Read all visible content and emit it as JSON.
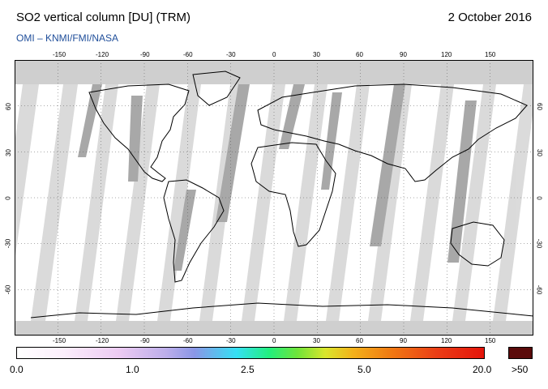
{
  "header": {
    "title": "SO2 vertical column [DU] (TRM)",
    "date": "2 October 2016",
    "credit": "OMI  –  KNMI/FMI/NASA"
  },
  "map": {
    "projection": "equirectangular",
    "lon_range": [
      -180,
      180
    ],
    "lat_range": [
      -90,
      90
    ],
    "lon_ticks_top": [
      "-150",
      "-120",
      "-90",
      "-60",
      "-30",
      "0",
      "30",
      "60",
      "90",
      "120",
      "150"
    ],
    "lon_ticks_bottom": [
      "-150",
      "-120",
      "-90",
      "-60",
      "-30",
      "0",
      "30",
      "60",
      "90",
      "120",
      "150"
    ],
    "lat_ticks": [
      "60",
      "30",
      "0",
      "-30",
      "-60"
    ],
    "gridlines": true,
    "colors": {
      "no_data": "#cfcfcf",
      "swath_gap": "#a6a6a6",
      "swath_light": "#d8d8d8",
      "coastline": "#000000"
    }
  },
  "colorbar": {
    "labels": [
      "0.0",
      "1.0",
      "2.5",
      "5.0",
      "20.0"
    ],
    "over_label": ">50",
    "over_color": "#5a0a0a"
  }
}
